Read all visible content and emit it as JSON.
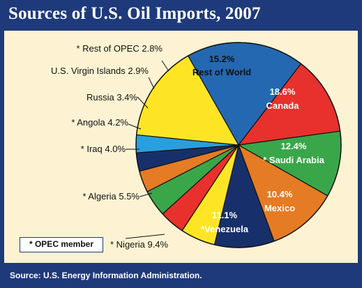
{
  "title": "Sources of U.S. Oil Imports, 2007",
  "source": "Source: U.S. Energy Information Administration.",
  "legend_note": "* OPEC member",
  "colors": {
    "frame": "#1e3a7b",
    "panel": "#fdf3d3"
  },
  "chart_data": {
    "type": "pie",
    "title": "Sources of U.S. Oil Imports, 2007",
    "unit": "%",
    "slices": [
      {
        "label": "Canada",
        "value": 18.6,
        "text": [
          "18.6%",
          "Canada"
        ],
        "color": "#2468b1",
        "text_color": "#ffffff",
        "position": "inside"
      },
      {
        "label": "Saudi Arabia",
        "value": 12.4,
        "opec": true,
        "text": [
          "12.4%",
          "* Saudi Arabia"
        ],
        "color": "#e8302c",
        "text_color": "#ffffff",
        "position": "inside"
      },
      {
        "label": "Mexico",
        "value": 10.4,
        "text": [
          "10.4%",
          "Mexico"
        ],
        "color": "#3aa64a",
        "text_color": "#ffffff",
        "position": "inside"
      },
      {
        "label": "Venezuela",
        "value": 11.1,
        "opec": true,
        "text": [
          "11.1%",
          "*Venezuela"
        ],
        "color": "#e57b24",
        "text_color": "#ffffff",
        "position": "inside"
      },
      {
        "label": "Nigeria",
        "value": 9.4,
        "opec": true,
        "text": [
          "* Nigeria 9.4%"
        ],
        "color": "#17306b",
        "position": "outside"
      },
      {
        "label": "Algeria",
        "value": 5.5,
        "opec": true,
        "text": [
          "* Algeria 5.5%"
        ],
        "color": "#fde526",
        "position": "outside"
      },
      {
        "label": "Iraq",
        "value": 4.0,
        "opec": true,
        "text": [
          "* Iraq 4.0%"
        ],
        "color": "#e8302c",
        "position": "outside"
      },
      {
        "label": "Angola",
        "value": 4.2,
        "opec": true,
        "text": [
          "* Angola 4.2%"
        ],
        "color": "#3aa64a",
        "position": "outside"
      },
      {
        "label": "Russia",
        "value": 3.4,
        "text": [
          "Russia 3.4%"
        ],
        "color": "#e57b24",
        "position": "outside"
      },
      {
        "label": "U.S. Virgin Islands",
        "value": 2.9,
        "text": [
          "U.S. Virgin Islands 2.9%"
        ],
        "color": "#17306b",
        "position": "outside"
      },
      {
        "label": "Rest of OPEC",
        "value": 2.8,
        "opec": true,
        "text": [
          "* Rest of OPEC 2.8%"
        ],
        "color": "#2a9fde",
        "position": "outside"
      },
      {
        "label": "Rest of World",
        "value": 15.2,
        "text": [
          "15.2%",
          "Rest of World"
        ],
        "color": "#fde526",
        "text_color": "#111111",
        "position": "inside"
      }
    ]
  }
}
